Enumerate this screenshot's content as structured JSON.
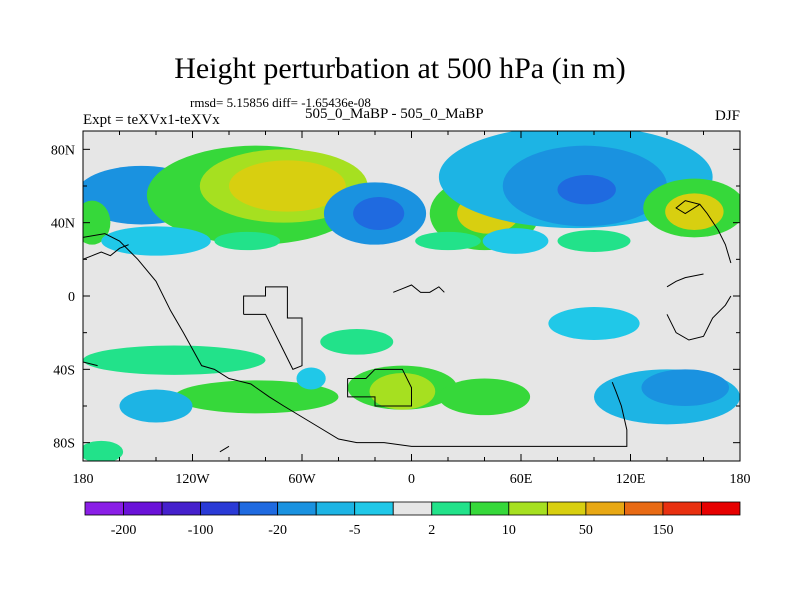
{
  "chart_data": {
    "type": "contour-map",
    "title": "Height perturbation at 500 hPa (in m)",
    "stats": "rmsd= 5.15856 diff= -1.65436e-08",
    "left_label": "Expt = teXVx1-teXVx",
    "center_label": "505_0_MaBP - 505_0_MaBP",
    "right_label": "DJF",
    "xlim": [
      -180,
      180
    ],
    "ylim": [
      -90,
      90
    ],
    "x_ticks": [
      {
        "value": -180,
        "label": "180"
      },
      {
        "value": -120,
        "label": "120W"
      },
      {
        "value": -60,
        "label": "60W"
      },
      {
        "value": 0,
        "label": "0"
      },
      {
        "value": 60,
        "label": "60E"
      },
      {
        "value": 120,
        "label": "120E"
      },
      {
        "value": 180,
        "label": "180"
      }
    ],
    "y_ticks": [
      {
        "value": 80,
        "label": "80N"
      },
      {
        "value": 40,
        "label": "40N"
      },
      {
        "value": 0,
        "label": "0"
      },
      {
        "value": -40,
        "label": "40S"
      },
      {
        "value": -80,
        "label": "80S"
      }
    ],
    "levels": [
      -200,
      -150,
      -100,
      -50,
      -20,
      -10,
      -5,
      -2,
      2,
      5,
      10,
      20,
      50,
      100,
      150,
      200
    ],
    "colorbar_labels": [
      {
        "value": -200,
        "label": "-200"
      },
      {
        "value": -100,
        "label": "-100"
      },
      {
        "value": -20,
        "label": "-20"
      },
      {
        "value": -5,
        "label": "-5"
      },
      {
        "value": 2,
        "label": "2"
      },
      {
        "value": 10,
        "label": "10"
      },
      {
        "value": 50,
        "label": "50"
      },
      {
        "value": 150,
        "label": "150"
      }
    ],
    "colors": [
      "#8a1ee6",
      "#6a12d8",
      "#4520cc",
      "#2a3ad6",
      "#1f6ae0",
      "#1a92e0",
      "#1db4e4",
      "#20c8e8",
      "#e6e6e6",
      "#22e28a",
      "#36d83a",
      "#a6e020",
      "#d8cf10",
      "#e8a814",
      "#e86a14",
      "#e83010",
      "#e60000"
    ],
    "features": [
      {
        "lon": -148,
        "lat": 55,
        "rx": 36,
        "ry": 16,
        "value": -15
      },
      {
        "lon": -175,
        "lat": 40,
        "rx": 10,
        "ry": 12,
        "value": 8
      },
      {
        "lon": -85,
        "lat": 55,
        "rx": 60,
        "ry": 27,
        "value": 7
      },
      {
        "lon": -70,
        "lat": 60,
        "rx": 46,
        "ry": 20,
        "value": 18
      },
      {
        "lon": -68,
        "lat": 60,
        "rx": 32,
        "ry": 14,
        "value": 35
      },
      {
        "lon": -20,
        "lat": 45,
        "rx": 28,
        "ry": 17,
        "value": -12
      },
      {
        "lon": -18,
        "lat": 45,
        "rx": 14,
        "ry": 9,
        "value": -40
      },
      {
        "lon": 40,
        "lat": 45,
        "rx": 30,
        "ry": 20,
        "value": 8
      },
      {
        "lon": 42,
        "lat": 45,
        "rx": 17,
        "ry": 11,
        "value": 25
      },
      {
        "lon": 90,
        "lat": 65,
        "rx": 75,
        "ry": 28,
        "value": -6
      },
      {
        "lon": 95,
        "lat": 60,
        "rx": 45,
        "ry": 22,
        "value": -15
      },
      {
        "lon": 96,
        "lat": 58,
        "rx": 16,
        "ry": 8,
        "value": -40
      },
      {
        "lon": 155,
        "lat": 48,
        "rx": 28,
        "ry": 16,
        "value": 8
      },
      {
        "lon": 155,
        "lat": 46,
        "rx": 16,
        "ry": 10,
        "value": 30
      },
      {
        "lon": -140,
        "lat": 30,
        "rx": 30,
        "ry": 8,
        "value": -5
      },
      {
        "lon": 57,
        "lat": 30,
        "rx": 18,
        "ry": 7,
        "value": -5
      },
      {
        "lon": -90,
        "lat": 30,
        "rx": 18,
        "ry": 5,
        "value": 4
      },
      {
        "lon": 20,
        "lat": 30,
        "rx": 18,
        "ry": 5,
        "value": 4
      },
      {
        "lon": 100,
        "lat": 30,
        "rx": 20,
        "ry": 6,
        "value": 4
      },
      {
        "lon": -30,
        "lat": -25,
        "rx": 20,
        "ry": 7,
        "value": 4
      },
      {
        "lon": -130,
        "lat": -35,
        "rx": 50,
        "ry": 8,
        "value": 4
      },
      {
        "lon": 100,
        "lat": -15,
        "rx": 25,
        "ry": 9,
        "value": -4
      },
      {
        "lon": -5,
        "lat": -50,
        "rx": 30,
        "ry": 12,
        "value": 6
      },
      {
        "lon": -5,
        "lat": -52,
        "rx": 18,
        "ry": 10,
        "value": 12
      },
      {
        "lon": 40,
        "lat": -55,
        "rx": 25,
        "ry": 10,
        "value": 5
      },
      {
        "lon": -85,
        "lat": -55,
        "rx": 45,
        "ry": 9,
        "value": 5
      },
      {
        "lon": 140,
        "lat": -55,
        "rx": 40,
        "ry": 15,
        "value": -6
      },
      {
        "lon": 150,
        "lat": -50,
        "rx": 24,
        "ry": 10,
        "value": -12
      },
      {
        "lon": -140,
        "lat": -60,
        "rx": 20,
        "ry": 9,
        "value": -6
      },
      {
        "lon": -55,
        "lat": -45,
        "rx": 8,
        "ry": 6,
        "value": -4
      },
      {
        "lon": -170,
        "lat": -85,
        "rx": 12,
        "ry": 6,
        "value": 4
      }
    ]
  }
}
